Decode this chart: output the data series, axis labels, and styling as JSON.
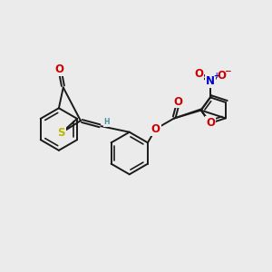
{
  "bg_color": "#ebebeb",
  "bond_color": "#1a1a1a",
  "bond_lw": 1.4,
  "dbl_sep": 0.1,
  "colors": {
    "O": "#cc0000",
    "S": "#b8b800",
    "N": "#0000cc",
    "H": "#4a8fa0",
    "C": "#1a1a1a"
  },
  "fs": 7.5,
  "figsize": [
    3.0,
    3.0
  ],
  "dpi": 100
}
